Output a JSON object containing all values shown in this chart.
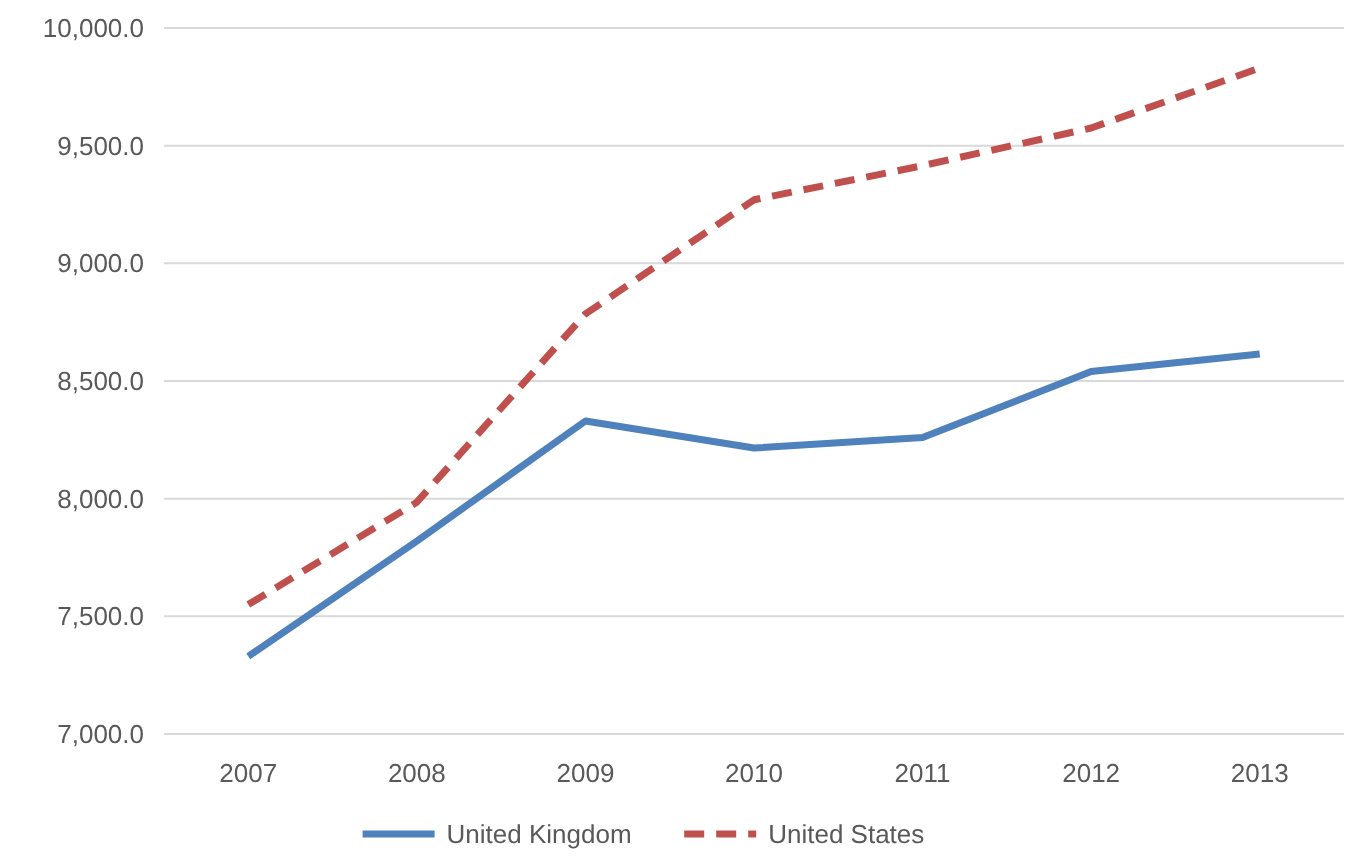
{
  "chart_data": {
    "type": "line",
    "categories": [
      "2007",
      "2008",
      "2009",
      "2010",
      "2011",
      "2012",
      "2013"
    ],
    "series": [
      {
        "name": "United Kingdom",
        "color": "#4f81bd",
        "values": [
          7330,
          7820,
          8330,
          8215,
          8260,
          8540,
          8615
        ],
        "line_style": "solid"
      },
      {
        "name": "United States",
        "color": "#c0504d",
        "values": [
          7550,
          7985,
          8785,
          9270,
          9415,
          9575,
          9830
        ],
        "line_style": "dashed"
      }
    ],
    "ylim": [
      7000,
      10000
    ],
    "yticks": [
      {
        "value": 7000,
        "label": "7,000.0"
      },
      {
        "value": 7500,
        "label": "7,500.0"
      },
      {
        "value": 8000,
        "label": "8,000.0"
      },
      {
        "value": 8500,
        "label": "8,500.0"
      },
      {
        "value": 9000,
        "label": "9,000.0"
      },
      {
        "value": 9500,
        "label": "9,500.0"
      },
      {
        "value": 10000,
        "label": "10,000.0"
      }
    ],
    "grid": "y",
    "legend": "bottom",
    "marker": "none"
  }
}
